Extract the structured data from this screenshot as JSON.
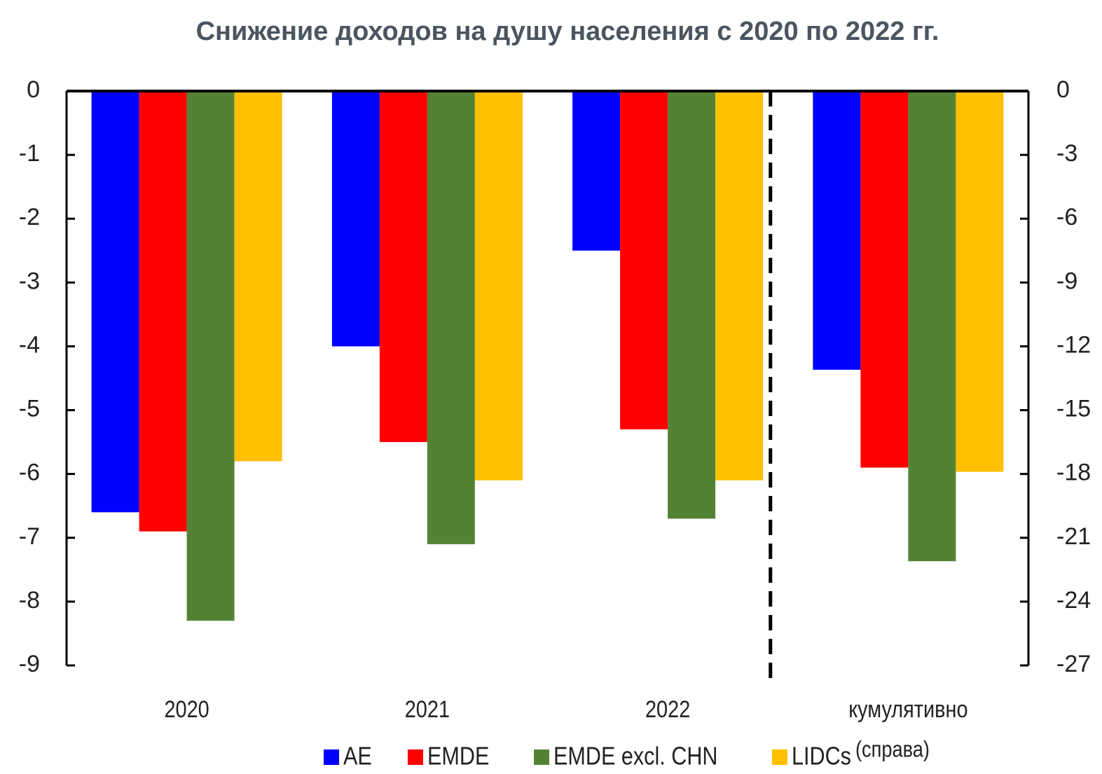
{
  "chart_data": {
    "type": "bar",
    "title": "Снижение доходов на душу населения с 2020 по 2022 гг.",
    "categories": [
      "2020",
      "2021",
      "2022",
      "кумулятивно"
    ],
    "category_axes": [
      "y",
      "y",
      "y",
      "y2"
    ],
    "series": [
      {
        "name": "AE",
        "color": "#0000ff",
        "values": [
          -6.6,
          -4.0,
          -2.5,
          -13.1
        ]
      },
      {
        "name": "EMDE",
        "color": "#ff0000",
        "values": [
          -6.9,
          -5.5,
          -5.3,
          -17.7
        ]
      },
      {
        "name": "EMDE excl. CHN",
        "color": "#548235",
        "values": [
          -8.3,
          -7.1,
          -6.7,
          -22.1
        ]
      },
      {
        "name": "LIDCs",
        "color": "#ffc000",
        "values": [
          -5.8,
          -6.1,
          -6.1,
          -17.9
        ]
      }
    ],
    "annotation": "(справа)",
    "ylim": [
      -9,
      0
    ],
    "yticks": [
      0,
      -1,
      -2,
      -3,
      -4,
      -5,
      -6,
      -7,
      -8,
      -9
    ],
    "y2lim": [
      -27,
      0
    ],
    "y2ticks": [
      0,
      -3,
      -6,
      -9,
      -12,
      -15,
      -18,
      -21,
      -24,
      -27
    ],
    "grid": false
  }
}
